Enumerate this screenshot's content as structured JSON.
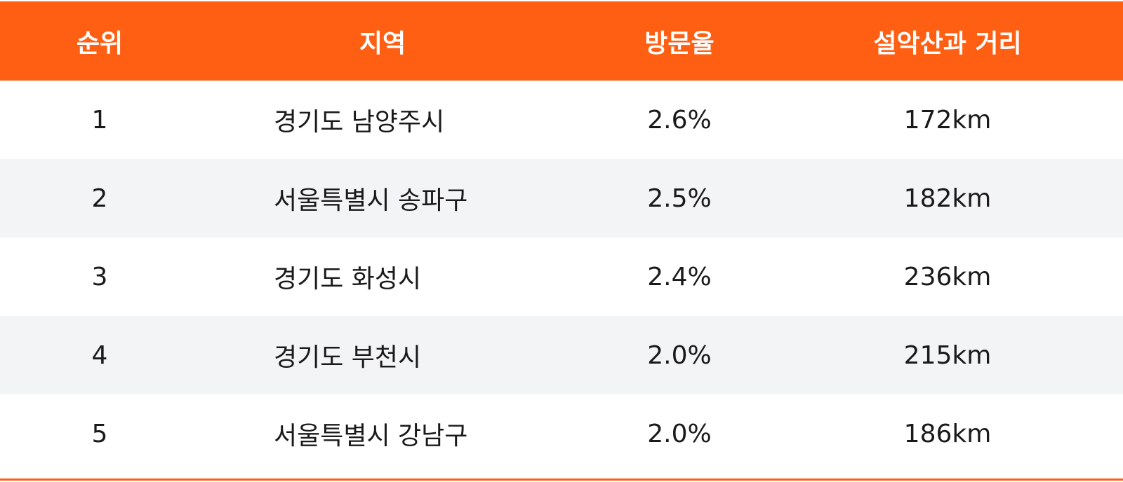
{
  "table": {
    "header": [
      "순위",
      "지역",
      "방문율",
      "설악산과 거리"
    ],
    "rows": [
      [
        "1",
        "경기도 남양주시",
        "2.6%",
        "172km"
      ],
      [
        "2",
        "서울특별시 송파구",
        "2.5%",
        "182km"
      ],
      [
        "3",
        "경기도 화성시",
        "2.4%",
        "236km"
      ],
      [
        "4",
        "경기도 부천시",
        "2.0%",
        "215km"
      ],
      [
        "5",
        "서울특별시 강남구",
        "2.0%",
        "186km"
      ]
    ]
  }
}
